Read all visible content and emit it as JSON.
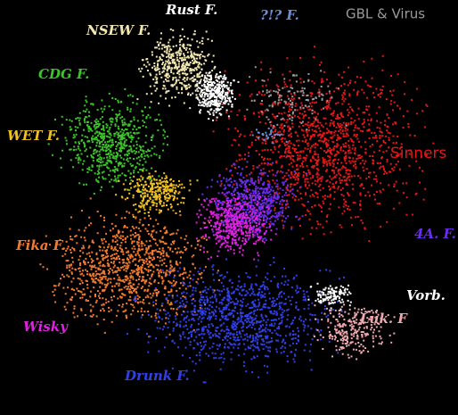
{
  "clusters": [
    {
      "label": "Rust F.",
      "color": "#ffffff"
    },
    {
      "label": "?!? F.",
      "color": "#6a8fd8"
    },
    {
      "label": "GBL & Virus",
      "color": "#9a9a9a"
    },
    {
      "label": "NSEW F.",
      "color": "#f2e6b0"
    },
    {
      "label": "CDG F.",
      "color": "#3cc42a"
    },
    {
      "label": "WET F.",
      "color": "#f0c020"
    },
    {
      "label": "Sinners",
      "color": "#e41818"
    },
    {
      "label": "4A. F.",
      "color": "#6a2cf0"
    },
    {
      "label": "Fika F.",
      "color": "#f07a30"
    },
    {
      "label": "Vorb.",
      "color": "#ffffff"
    },
    {
      "label": "Wisky",
      "color": "#e020e0"
    },
    {
      "label": "Luk. F",
      "color": "#f0a8b0"
    },
    {
      "label": "Drunk F.",
      "color": "#3040e8"
    }
  ]
}
